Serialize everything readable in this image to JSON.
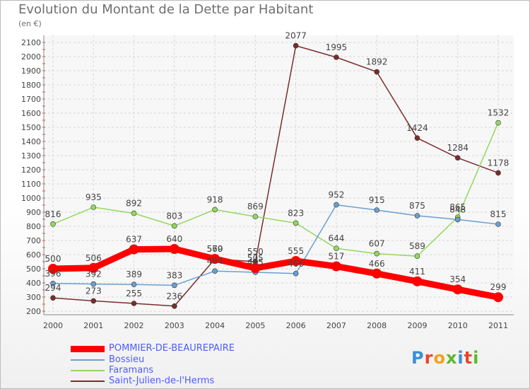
{
  "title": "Evolution du Montant de la Dette par Habitant",
  "unit_label": "(en €)",
  "logo": {
    "text": "Proxiti",
    "colors": [
      "#3a8fd8",
      "#e8452c",
      "#f2a21b",
      "#5cb82e",
      "#3a8fd8",
      "#e8452c",
      "#5cb82e"
    ]
  },
  "chart_data": {
    "type": "line",
    "title": "Evolution du Montant de la Dette par Habitant",
    "ylabel": "(en €)",
    "xlabel": "",
    "x": [
      "2000",
      "2001",
      "2002",
      "2003",
      "2004",
      "2005",
      "2006",
      "2007",
      "2008",
      "2009",
      "2010",
      "2011"
    ],
    "ylim": [
      200,
      2100
    ],
    "yticks": [
      200,
      300,
      400,
      500,
      600,
      700,
      800,
      900,
      1000,
      1100,
      1200,
      1300,
      1400,
      1500,
      1600,
      1700,
      1800,
      1900,
      2000,
      2100
    ],
    "grid": true,
    "legend_position": "bottom-left",
    "series": [
      {
        "name": "POMMIER-DE-BEAUREPAIRE",
        "color": "#ff0000",
        "values": [
          500,
          506,
          637,
          640,
          570,
          505,
          555,
          517,
          466,
          411,
          354,
          299
        ],
        "labels": [
          "500",
          "506",
          "637",
          "640",
          "570",
          "505",
          "555",
          "517",
          "466",
          "411",
          "354",
          "299"
        ]
      },
      {
        "name": "Bossieu",
        "color": "#6a9fd0",
        "values": [
          396,
          392,
          389,
          383,
          484,
          475,
          466,
          952,
          915,
          875,
          848,
          815
        ],
        "labels": [
          "396",
          "392",
          "389",
          "383",
          "484",
          "475",
          "466",
          "952",
          "915",
          "875",
          "848",
          "815"
        ]
      },
      {
        "name": "Faramans",
        "color": "#93d85f",
        "values": [
          816,
          935,
          892,
          803,
          918,
          869,
          823,
          644,
          607,
          589,
          865,
          1532
        ],
        "labels": [
          "816",
          "935",
          "892",
          "803",
          "918",
          "869",
          "823",
          "644",
          "607",
          "589",
          "865",
          "1532"
        ]
      },
      {
        "name": "Saint-Julien-de-l'Herms",
        "color": "#7b2c2c",
        "values": [
          294,
          273,
          255,
          236,
          569,
          550,
          2077,
          1995,
          1892,
          1424,
          1284,
          1178
        ],
        "labels": [
          "294",
          "273",
          "255",
          "236",
          "569",
          "550",
          "2077",
          "1995",
          "1892",
          "1424",
          "1284",
          "1178"
        ]
      }
    ]
  }
}
